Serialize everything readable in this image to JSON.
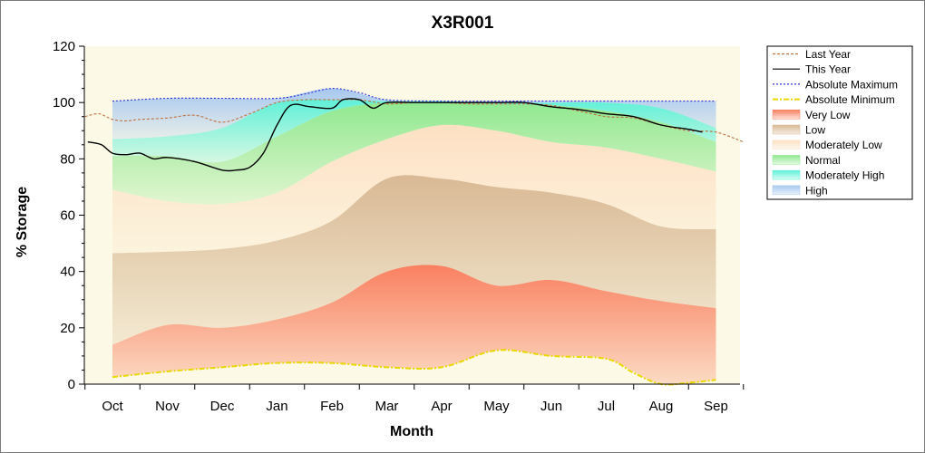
{
  "chart_data": {
    "type": "area",
    "title": "X3R001",
    "xlabel": "Month",
    "ylabel": "% Storage",
    "ylim": [
      0,
      120
    ],
    "yticks": [
      "0",
      "20",
      "40",
      "60",
      "80",
      "100",
      "120"
    ],
    "categories": [
      "Oct",
      "Nov",
      "Dec",
      "Jan",
      "Feb",
      "Mar",
      "Apr",
      "May",
      "Jun",
      "Jul",
      "Aug",
      "Sep"
    ],
    "x": [
      0,
      1,
      2,
      3,
      4,
      5,
      6,
      7,
      8,
      9,
      10,
      11
    ],
    "bands": [
      {
        "name": "Very Low",
        "color": "#f98060",
        "lower": [
          2.5,
          4.5,
          6,
          7.5,
          7.5,
          6,
          6,
          12,
          10,
          9,
          0,
          1.5
        ],
        "upper": [
          14,
          21,
          20,
          23,
          29,
          40,
          42,
          35,
          37,
          33,
          29.5,
          27
        ]
      },
      {
        "name": "Low",
        "color": "#d9b995",
        "lower": [
          14,
          21,
          20,
          23,
          29,
          40,
          42,
          35,
          37,
          33,
          29.5,
          27
        ],
        "upper": [
          46.5,
          47,
          48,
          51,
          58,
          73,
          73,
          70,
          68,
          64,
          56,
          55
        ]
      },
      {
        "name": "Moderately Low",
        "color": "#fde0c4",
        "lower": [
          46.5,
          47,
          48,
          51,
          58,
          73,
          73,
          70,
          68,
          64,
          56,
          55
        ],
        "upper": [
          69,
          65,
          64,
          68,
          79,
          87,
          92,
          90,
          86,
          84,
          80,
          75.5
        ]
      },
      {
        "name": "Normal",
        "color": "#90e890",
        "lower": [
          69,
          65,
          64,
          68,
          79,
          87,
          92,
          90,
          86,
          84,
          80,
          75.5
        ],
        "upper": [
          81,
          81,
          79,
          88,
          97,
          100,
          100,
          99.5,
          99,
          97,
          93,
          86
        ]
      },
      {
        "name": "Moderately High",
        "color": "#60f0d8",
        "lower": [
          81,
          81,
          79,
          88,
          97,
          100,
          100,
          99.5,
          99,
          97,
          93,
          86
        ],
        "upper": [
          87,
          88,
          91,
          100,
          101,
          100.5,
          100.5,
          100,
          100,
          100,
          98,
          91
        ]
      },
      {
        "name": "High",
        "color": "#a8c8f0",
        "lower": [
          87,
          88,
          91,
          100,
          101,
          100.5,
          100.5,
          100,
          100,
          100,
          98,
          91
        ],
        "upper": [
          100.5,
          101.5,
          101.5,
          101.5,
          105,
          101,
          100.5,
          100.5,
          100.5,
          100.5,
          100.5,
          100.5
        ]
      }
    ],
    "series": [
      {
        "name": "Last Year",
        "color": "#c07040",
        "style": "dashed",
        "x": [
          -0.5,
          -0.25,
          0,
          0.25,
          0.5,
          1,
          1.5,
          2,
          2.5,
          3,
          3.5,
          4,
          4.5,
          5,
          5.5,
          6,
          6.5,
          7,
          7.5,
          8,
          8.5,
          9,
          9.5,
          10,
          10.5,
          11,
          11.5
        ],
        "values": [
          95,
          96,
          94,
          93.5,
          94,
          94.5,
          95.5,
          93,
          96,
          100,
          101,
          101,
          101,
          99.5,
          100,
          100,
          99.5,
          99.5,
          99.5,
          99,
          97,
          95,
          94.5,
          92,
          90,
          89.5,
          86
        ]
      },
      {
        "name": "This Year",
        "color": "#000000",
        "style": "solid",
        "x": [
          -0.45,
          -0.2,
          0,
          0.25,
          0.5,
          0.75,
          1,
          1.5,
          2,
          2.25,
          2.5,
          2.75,
          3,
          3.25,
          3.6,
          4,
          4.2,
          4.5,
          4.75,
          5,
          5.5,
          6,
          6.5,
          7,
          7.5,
          8,
          8.5,
          9,
          9.5,
          10,
          10.5,
          10.75
        ],
        "values": [
          86,
          85,
          82,
          81.5,
          82,
          80,
          80.5,
          79,
          76,
          76,
          77,
          82,
          92,
          99,
          98.5,
          98,
          101,
          101,
          98,
          100,
          100,
          100,
          100,
          100,
          100,
          98.5,
          97.5,
          96,
          95,
          92,
          90.5,
          89.5
        ]
      },
      {
        "name": "Absolute Maximum",
        "color": "#3030d0",
        "style": "dotted",
        "x": [
          0,
          1,
          2,
          3,
          3.5,
          4,
          4.5,
          5,
          6,
          7,
          8,
          9,
          10,
          11
        ],
        "values": [
          100.5,
          101.5,
          101.5,
          101.5,
          103,
          105,
          103.5,
          101,
          100.5,
          100.5,
          100.5,
          100.5,
          100.5,
          100.5
        ]
      },
      {
        "name": "Absolute Minimum",
        "color": "#e8d800",
        "style": "dashdot",
        "x": [
          0,
          1,
          2,
          3,
          4,
          5,
          6,
          7,
          8,
          9,
          9.5,
          10,
          10.5,
          11
        ],
        "values": [
          2.5,
          4.5,
          6,
          7.5,
          7.5,
          6,
          6,
          12,
          10,
          9,
          4,
          0,
          0.5,
          1.5
        ]
      }
    ],
    "legend": {
      "placement": "right",
      "entries": [
        "Last Year",
        "This Year",
        "Absolute Maximum",
        "Absolute Minimum",
        "Very Low",
        "Low",
        "Moderately Low",
        "Normal",
        "Moderately High",
        "High"
      ]
    },
    "grid": false,
    "plot_background": "#fcfae6"
  }
}
